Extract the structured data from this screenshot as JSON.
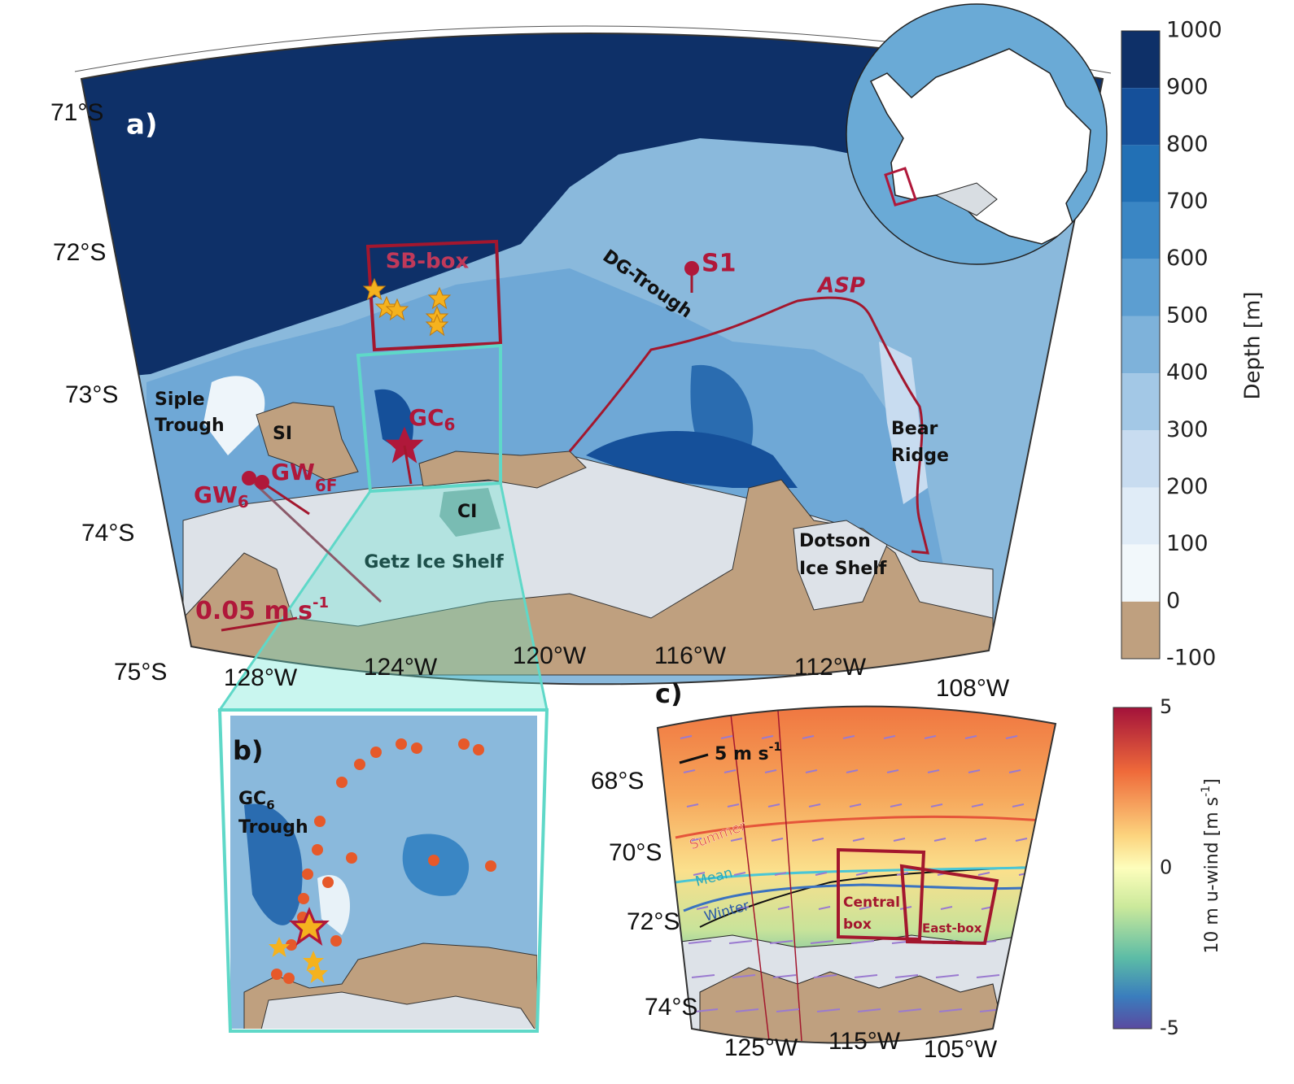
{
  "panel_a": {
    "label": "a)",
    "lat_labels": [
      "71°S",
      "72°S",
      "73°S",
      "74°S",
      "75°S"
    ],
    "lon_labels": [
      "128°W",
      "124°W",
      "120°W",
      "116°W",
      "112°W",
      "108°W"
    ],
    "sb_box": "SB-box",
    "dg_trough": "DG-Trough",
    "s1": "S1",
    "asp": "ASP",
    "siple_trough": [
      "Siple",
      "Trough"
    ],
    "si": "SI",
    "ci": "CI",
    "getz": "Getz Ice Shelf",
    "bear_ridge": [
      "Bear",
      "Ridge"
    ],
    "dotson": [
      "Dotson",
      "Ice Shelf"
    ],
    "gc6": {
      "main": "GC",
      "sub": "6"
    },
    "gw6f": {
      "main": "GW",
      "sub": "6F"
    },
    "gw6": {
      "main": "GW",
      "sub": "6"
    },
    "scale": {
      "main": "0.05 m s",
      "sup": "-1"
    }
  },
  "colorbar_a": {
    "label": "Depth [m]",
    "ticks": [
      "1000",
      "900",
      "800",
      "700",
      "600",
      "500",
      "400",
      "300",
      "200",
      "100",
      "0",
      "-100"
    ]
  },
  "panel_b": {
    "label": "b)",
    "gc6_trough": {
      "main": "GC",
      "sub": "6",
      "line2": "Trough"
    }
  },
  "panel_c": {
    "label": "c)",
    "lat_labels": [
      "68°S",
      "70°S",
      "72°S",
      "74°S"
    ],
    "lon_labels": [
      "125°W",
      "115°W",
      "105°W"
    ],
    "scale": {
      "main": "5 m s",
      "sup": "-1"
    },
    "summer": "Summer",
    "mean": "Mean",
    "winter": "Winter",
    "central_box": [
      "Central",
      "box"
    ],
    "east_box": "East-box"
  },
  "colorbar_c": {
    "label": {
      "main": "10 m u-wind [m s",
      "sup": "-1",
      "end": "]"
    },
    "ticks": [
      "5",
      "0",
      "-5"
    ]
  }
}
